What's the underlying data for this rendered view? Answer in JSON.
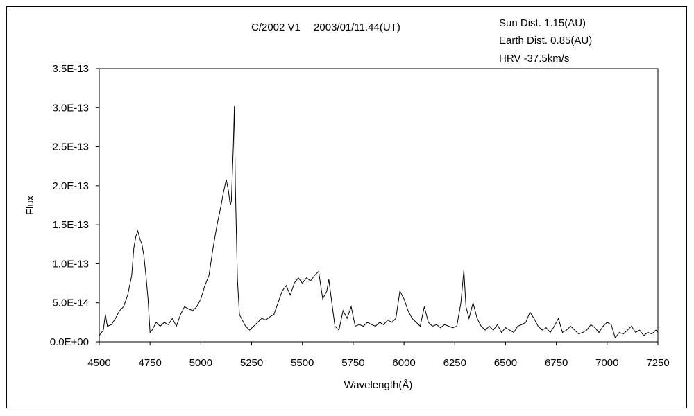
{
  "chart_data": {
    "type": "line",
    "title": "C/2002 V1　 2003/01/11.44(UT)",
    "annotations": [
      "Sun Dist. 1.15(AU)",
      "Earth Dist. 0.85(AU)",
      "HRV -37.5km/s"
    ],
    "xlabel": "Wavelength(Å)",
    "ylabel": "Flux",
    "xlim": [
      4500,
      7250
    ],
    "ylim": [
      0,
      3.5e-13
    ],
    "xticks": [
      4500,
      4750,
      5000,
      5250,
      5500,
      5750,
      6000,
      6250,
      6500,
      6750,
      7000,
      7250
    ],
    "xtick_labels": [
      "4500",
      "4750",
      "5000",
      "5250",
      "5500",
      "5750",
      "6000",
      "6250",
      "6500",
      "6750",
      "7000",
      "7250"
    ],
    "yticks": [
      0,
      5e-14,
      1e-13,
      1.5e-13,
      2e-13,
      2.5e-13,
      3e-13,
      3.5e-13
    ],
    "ytick_labels": [
      "0.0E+00",
      "5.0E-14",
      "1.0E-13",
      "1.5E-13",
      "2.0E-13",
      "2.5E-13",
      "3.0E-13",
      "3.5E-13"
    ],
    "grid": false,
    "line_color": "#000000",
    "series": [
      {
        "points": [
          [
            4500,
            8e-15
          ],
          [
            4520,
            1.5e-14
          ],
          [
            4530,
            3.5e-14
          ],
          [
            4540,
            2e-14
          ],
          [
            4560,
            2.2e-14
          ],
          [
            4580,
            3e-14
          ],
          [
            4600,
            4e-14
          ],
          [
            4620,
            4.5e-14
          ],
          [
            4640,
            6e-14
          ],
          [
            4660,
            8.5e-14
          ],
          [
            4670,
            1.2e-13
          ],
          [
            4680,
            1.35e-13
          ],
          [
            4690,
            1.42e-13
          ],
          [
            4700,
            1.32e-13
          ],
          [
            4710,
            1.25e-13
          ],
          [
            4720,
            1.1e-13
          ],
          [
            4730,
            8.5e-14
          ],
          [
            4740,
            5.5e-14
          ],
          [
            4750,
            1.2e-14
          ],
          [
            4760,
            1.5e-14
          ],
          [
            4780,
            2.5e-14
          ],
          [
            4800,
            2e-14
          ],
          [
            4820,
            2.5e-14
          ],
          [
            4840,
            2.2e-14
          ],
          [
            4860,
            3e-14
          ],
          [
            4880,
            2e-14
          ],
          [
            4900,
            3.5e-14
          ],
          [
            4920,
            4.5e-14
          ],
          [
            4940,
            4.2e-14
          ],
          [
            4960,
            4e-14
          ],
          [
            4980,
            4.5e-14
          ],
          [
            5000,
            5.5e-14
          ],
          [
            5020,
            7.2e-14
          ],
          [
            5040,
            8.5e-14
          ],
          [
            5060,
            1.2e-13
          ],
          [
            5080,
            1.5e-13
          ],
          [
            5100,
            1.75e-13
          ],
          [
            5110,
            1.9e-13
          ],
          [
            5125,
            2.08e-13
          ],
          [
            5135,
            1.95e-13
          ],
          [
            5145,
            1.75e-13
          ],
          [
            5150,
            1.8e-13
          ],
          [
            5160,
            2.5e-13
          ],
          [
            5165,
            3.02e-13
          ],
          [
            5170,
            2e-13
          ],
          [
            5180,
            8e-14
          ],
          [
            5190,
            3.5e-14
          ],
          [
            5200,
            3e-14
          ],
          [
            5220,
            2e-14
          ],
          [
            5240,
            1.5e-14
          ],
          [
            5260,
            2e-14
          ],
          [
            5280,
            2.5e-14
          ],
          [
            5300,
            3e-14
          ],
          [
            5320,
            2.8e-14
          ],
          [
            5340,
            3.2e-14
          ],
          [
            5360,
            3.5e-14
          ],
          [
            5380,
            5e-14
          ],
          [
            5400,
            6.5e-14
          ],
          [
            5420,
            7.2e-14
          ],
          [
            5440,
            6e-14
          ],
          [
            5460,
            7.5e-14
          ],
          [
            5480,
            8.2e-14
          ],
          [
            5500,
            7.5e-14
          ],
          [
            5520,
            8.2e-14
          ],
          [
            5540,
            7.8e-14
          ],
          [
            5560,
            8.5e-14
          ],
          [
            5580,
            9e-14
          ],
          [
            5600,
            5.5e-14
          ],
          [
            5620,
            6.5e-14
          ],
          [
            5630,
            8e-14
          ],
          [
            5640,
            6e-14
          ],
          [
            5660,
            2e-14
          ],
          [
            5680,
            1.5e-14
          ],
          [
            5700,
            4e-14
          ],
          [
            5720,
            3e-14
          ],
          [
            5740,
            4.5e-14
          ],
          [
            5760,
            2e-14
          ],
          [
            5780,
            2.2e-14
          ],
          [
            5800,
            2e-14
          ],
          [
            5820,
            2.5e-14
          ],
          [
            5840,
            2.2e-14
          ],
          [
            5860,
            2e-14
          ],
          [
            5880,
            2.5e-14
          ],
          [
            5900,
            2.2e-14
          ],
          [
            5920,
            2.8e-14
          ],
          [
            5940,
            2.5e-14
          ],
          [
            5960,
            3e-14
          ],
          [
            5980,
            6.5e-14
          ],
          [
            6000,
            5.5e-14
          ],
          [
            6020,
            4e-14
          ],
          [
            6040,
            3e-14
          ],
          [
            6060,
            2.5e-14
          ],
          [
            6080,
            2e-14
          ],
          [
            6100,
            4.5e-14
          ],
          [
            6120,
            2.5e-14
          ],
          [
            6140,
            2e-14
          ],
          [
            6160,
            2.2e-14
          ],
          [
            6180,
            1.8e-14
          ],
          [
            6200,
            2.2e-14
          ],
          [
            6220,
            2e-14
          ],
          [
            6240,
            1.8e-14
          ],
          [
            6260,
            2e-14
          ],
          [
            6280,
            5e-14
          ],
          [
            6295,
            9.2e-14
          ],
          [
            6305,
            4.5e-14
          ],
          [
            6320,
            3e-14
          ],
          [
            6340,
            5e-14
          ],
          [
            6360,
            3e-14
          ],
          [
            6380,
            2e-14
          ],
          [
            6400,
            1.5e-14
          ],
          [
            6420,
            2e-14
          ],
          [
            6440,
            1.5e-14
          ],
          [
            6460,
            2.2e-14
          ],
          [
            6480,
            1.2e-14
          ],
          [
            6500,
            1.8e-14
          ],
          [
            6520,
            1.5e-14
          ],
          [
            6540,
            1.2e-14
          ],
          [
            6560,
            2e-14
          ],
          [
            6580,
            2.2e-14
          ],
          [
            6600,
            2.5e-14
          ],
          [
            6620,
            3.8e-14
          ],
          [
            6640,
            3e-14
          ],
          [
            6660,
            2e-14
          ],
          [
            6680,
            1.5e-14
          ],
          [
            6700,
            1.8e-14
          ],
          [
            6720,
            1.2e-14
          ],
          [
            6740,
            2e-14
          ],
          [
            6760,
            3e-14
          ],
          [
            6780,
            1.2e-14
          ],
          [
            6800,
            1.5e-14
          ],
          [
            6820,
            2e-14
          ],
          [
            6840,
            1.5e-14
          ],
          [
            6860,
            1e-14
          ],
          [
            6880,
            1.2e-14
          ],
          [
            6900,
            1.5e-14
          ],
          [
            6920,
            2.2e-14
          ],
          [
            6940,
            1.8e-14
          ],
          [
            6960,
            1.2e-14
          ],
          [
            6980,
            2e-14
          ],
          [
            7000,
            2.5e-14
          ],
          [
            7020,
            2.2e-14
          ],
          [
            7040,
            5e-15
          ],
          [
            7060,
            1.2e-14
          ],
          [
            7080,
            1e-14
          ],
          [
            7100,
            1.5e-14
          ],
          [
            7120,
            2e-14
          ],
          [
            7140,
            1.2e-14
          ],
          [
            7160,
            1.5e-14
          ],
          [
            7180,
            8e-15
          ],
          [
            7200,
            1.2e-14
          ],
          [
            7220,
            1e-14
          ],
          [
            7240,
            1.5e-14
          ],
          [
            7250,
            1.2e-14
          ]
        ]
      }
    ]
  }
}
